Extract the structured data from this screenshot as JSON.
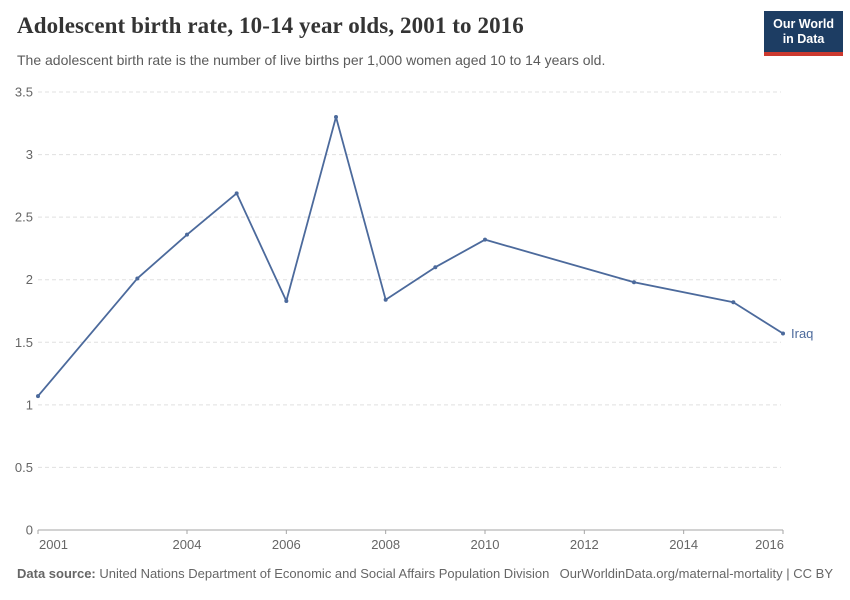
{
  "header": {
    "title": "Adolescent birth rate, 10-14 year olds, 2001 to 2016",
    "subtitle": "The adolescent birth rate is the number of live births per 1,000 women aged 10 to 14 years old."
  },
  "logo": {
    "line1": "Our World",
    "line2": "in Data",
    "bg_color": "#1d3d63",
    "stripe_color": "#cc392f"
  },
  "chart_data": {
    "type": "line",
    "title": "Adolescent birth rate, 10-14 year olds, 2001 to 2016",
    "xlabel": "",
    "ylabel": "",
    "xlim": [
      2001,
      2016
    ],
    "ylim": [
      0,
      3.5
    ],
    "x_ticks": [
      2001,
      2004,
      2006,
      2008,
      2010,
      2012,
      2014,
      2016
    ],
    "y_ticks": [
      0,
      0.5,
      1,
      1.5,
      2,
      2.5,
      3,
      3.5
    ],
    "grid": "horizontal-dashed",
    "legend_position": "end-of-line",
    "series": [
      {
        "name": "Iraq",
        "color": "#4c6a9c",
        "points": [
          {
            "x": 2001,
            "y": 1.07
          },
          {
            "x": 2003,
            "y": 2.01
          },
          {
            "x": 2004,
            "y": 2.36
          },
          {
            "x": 2005,
            "y": 2.69
          },
          {
            "x": 2006,
            "y": 1.83
          },
          {
            "x": 2007,
            "y": 3.3
          },
          {
            "x": 2008,
            "y": 1.84
          },
          {
            "x": 2009,
            "y": 2.1
          },
          {
            "x": 2010,
            "y": 2.32
          },
          {
            "x": 2013,
            "y": 1.98
          },
          {
            "x": 2015,
            "y": 1.82
          },
          {
            "x": 2016,
            "y": 1.57
          }
        ]
      }
    ]
  },
  "footer": {
    "source_label": "Data source:",
    "source_text": "United Nations Department of Economic and Social Affairs Population Division",
    "attribution": "OurWorldinData.org/maternal-mortality | CC BY"
  },
  "colors": {
    "line": "#4c6a9c",
    "grid": "#e0e0e0",
    "axis": "#a5a5a5",
    "tick_label": "#666666",
    "title": "#343434",
    "subtitle": "#5b5b5b",
    "footer": "#666666"
  }
}
